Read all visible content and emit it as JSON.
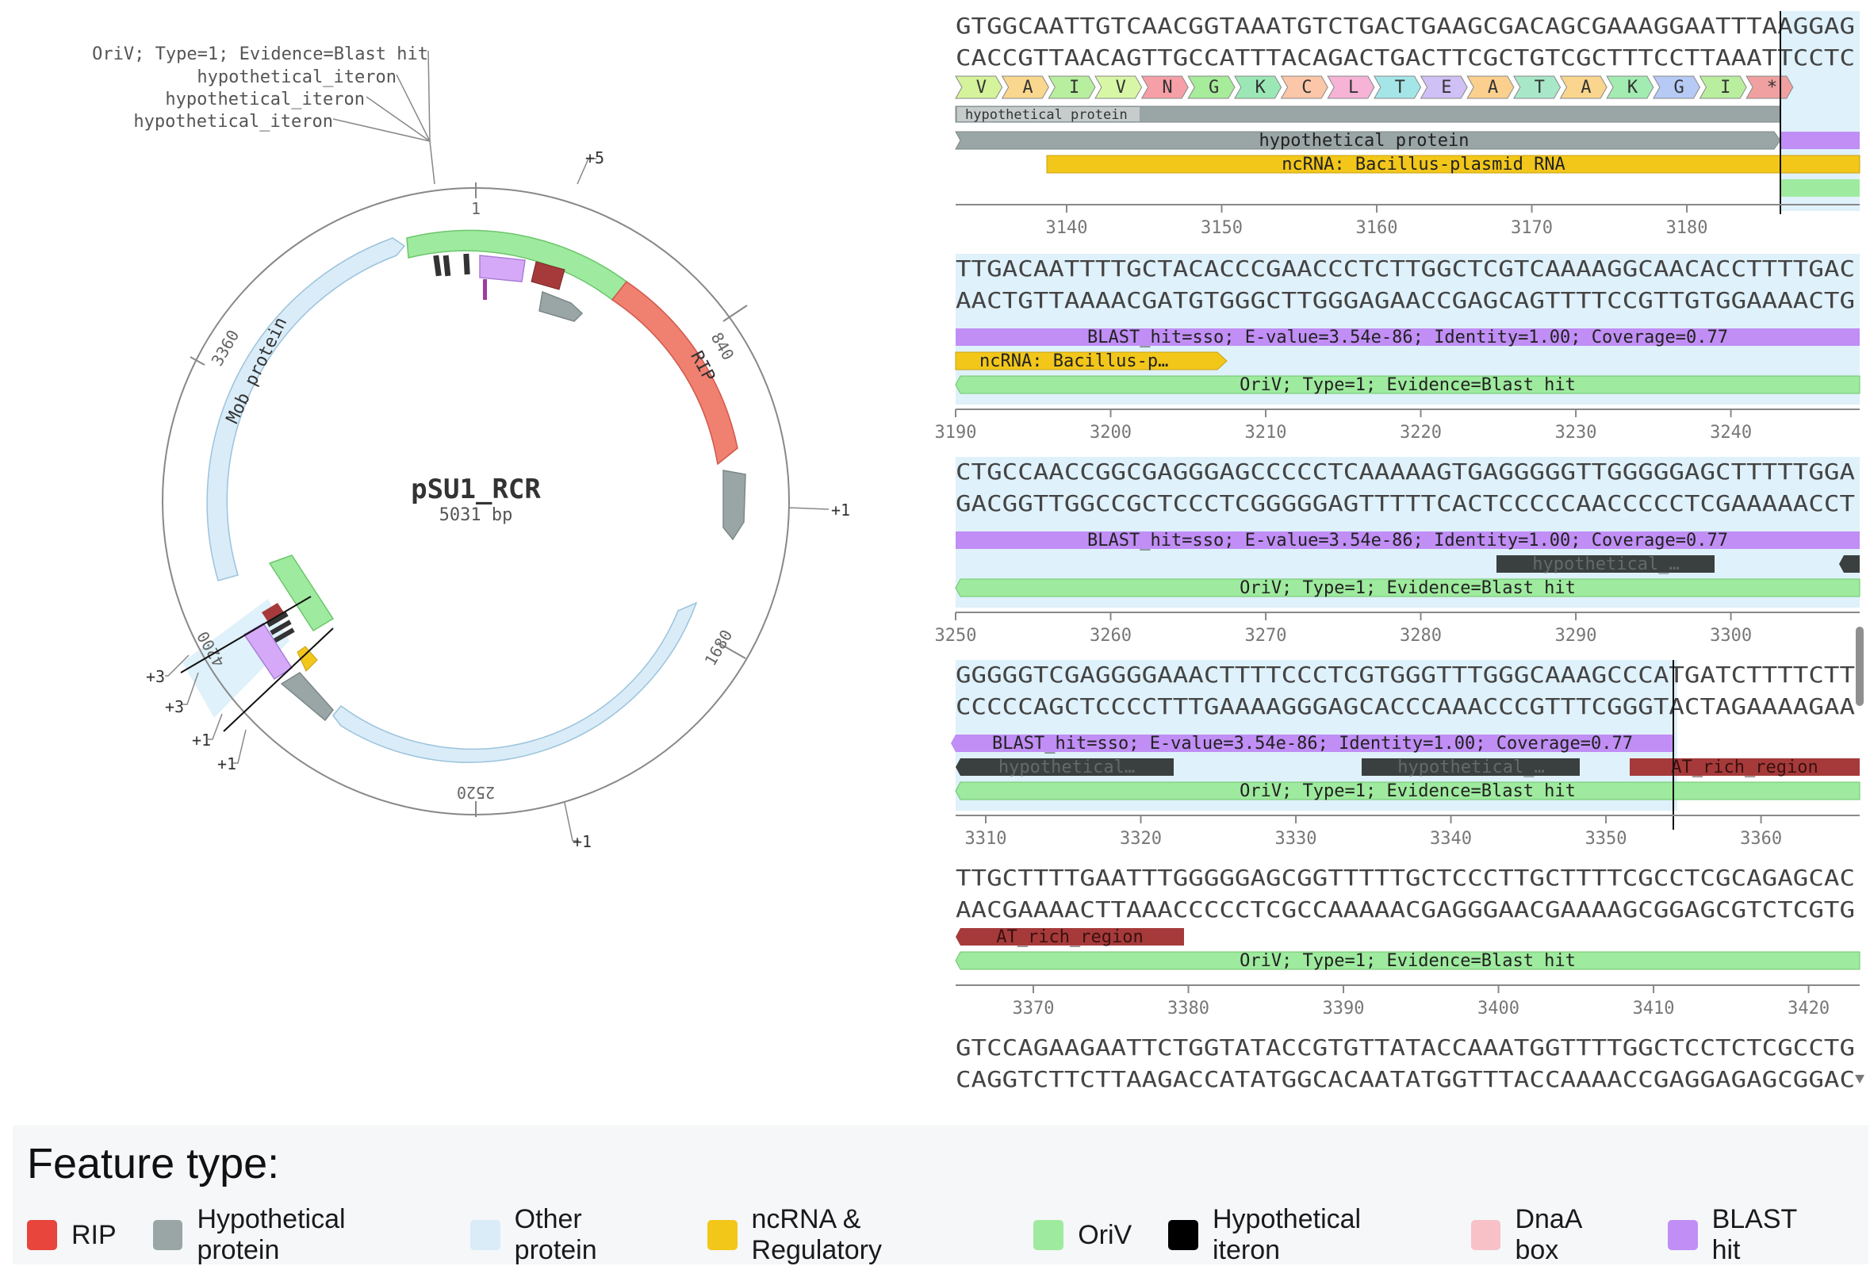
{
  "plasmid": {
    "name": "pSU1_RCR",
    "length_label": "5031 bp",
    "ticks": [
      "1",
      "840",
      "1680",
      "2520",
      "3360",
      "4200"
    ],
    "cutsite_labels": [
      "+5",
      "+1",
      "+1",
      "+3",
      "+3",
      "+1",
      "+1"
    ],
    "feature_labels": [
      "OriV; Type=1; Evidence=Blast hit",
      "hypothetical_iteron",
      "hypothetical_iteron",
      "hypothetical_iteron"
    ],
    "arc_labels": [
      "RIP",
      "Mob protein"
    ]
  },
  "colors": {
    "rip": "#e8453c",
    "rip_arc": "#f08070",
    "hypothetical": "#9aa5a5",
    "other": "#d9ecf8",
    "ncrna": "#f2c71a",
    "oriv": "#9eea9e",
    "iteron": "#000000",
    "dnaa": "#f8c1c8",
    "blast": "#c08ef5",
    "at_rich": "#a63a3a",
    "hyp_dark": "#3a3f40",
    "highlight": "#dff1fa"
  },
  "linear": {
    "rows": [
      {
        "top": "GTGGCAATTGTCAACGGTAAATGTCTGACTGAAGCGACAGCGAAAGGAATTTAAGGAG",
        "bottom": "CACCGTTAACAGTTGCCATTTACAGACTGACTTCGCTGTCGCTTTCCTTAAATTCCTC",
        "aa": [
          "V",
          "A",
          "I",
          "V",
          "N",
          "G",
          "K",
          "C",
          "L",
          "T",
          "E",
          "A",
          "T",
          "A",
          "K",
          "G",
          "I",
          "*"
        ],
        "small_label": "hypothetical protein",
        "features": [
          "hypothetical protein",
          "ncRNA: Bacillus-plasmid RNA"
        ],
        "ticks": [
          "3140",
          "3150",
          "3160",
          "3170",
          "3180"
        ]
      },
      {
        "top": "TTGACAATTTTGCTACACCCGAACCCTCTTGGCTCGTCAAAAGGCAACACCTTTTGAC",
        "bottom": "AACTGTTAAAACGATGTGGGCTTGGGAGAACCGAGCAGTTTTCCGTTGTGGAAAACTG",
        "features": [
          "BLAST_hit=sso; E-value=3.54e-86; Identity=1.00; Coverage=0.77",
          "ncRNA: Bacillus-p…",
          "OriV; Type=1; Evidence=Blast hit"
        ],
        "ticks": [
          "3190",
          "3200",
          "3210",
          "3220",
          "3230",
          "3240"
        ]
      },
      {
        "top": "CTGCCAACCGGCGAGGGAGCCCCCTCAAAAAGTGAGGGGGTTGGGGGAGCTTTTTGGA",
        "bottom": "GACGGTTGGCCGCTCCCTCGGGGGAGTTTTTCACTCCCCCAACCCCCTCGAAAAACCT",
        "features": [
          "BLAST_hit=sso; E-value=3.54e-86; Identity=1.00; Coverage=0.77",
          "hypothetical_…",
          "OriV; Type=1; Evidence=Blast hit"
        ],
        "ticks": [
          "3250",
          "3260",
          "3270",
          "3280",
          "3290",
          "3300"
        ]
      },
      {
        "top": "GGGGGTCGAGGGGAAACTTTTCCCTCGTGGGTTTGGGCAAAGCCCATGATCTTTTCTT",
        "bottom": "CCCCCAGCTCCCCTTTGAAAAGGGAGCACCCAAACCCGTTTCGGGTACTAGAAAAGAA",
        "features": [
          "BLAST_hit=sso; E-value=3.54e-86; Identity=1.00; Coverage=0.77",
          "hypothetical…",
          "hypothetical_…",
          "AT_rich_region",
          "OriV; Type=1; Evidence=Blast hit"
        ],
        "ticks": [
          "3310",
          "3320",
          "3330",
          "3340",
          "3350",
          "3360"
        ]
      },
      {
        "top": "TTGCTTTTGAATTTGGGGGAGCGGTTTTTGCTCCCTTGCTTTTCGCCTCGCAGAGCAC",
        "bottom": "AACGAAAACTTAAACCCCCTCGCCAAAAACGAGGGAACGAAAAGCGGAGCGTCTCGTG",
        "features": [
          "AT_rich_region",
          "OriV; Type=1; Evidence=Blast hit"
        ],
        "ticks": [
          "3370",
          "3380",
          "3390",
          "3400",
          "3410",
          "3420"
        ]
      },
      {
        "top": "GTCCAGAAGAATTCTGGTATACCGTGTTATACCAAATGGTTTTGGCTCCTCTCGCCTG",
        "bottom": "CAGGTCTTCTTAAGACCATATGGCACAATATGGTTTACCAAAACCGAGGAGAGCGGAC"
      }
    ]
  },
  "legend": {
    "title": "Feature type:",
    "items": [
      {
        "label": "RIP",
        "color": "#e8453c"
      },
      {
        "label": "Hypothetical protein",
        "color": "#9aa5a5"
      },
      {
        "label": "Other protein",
        "color": "#d9ecf8"
      },
      {
        "label": "ncRNA & Regulatory",
        "color": "#f2c71a"
      },
      {
        "label": "OriV",
        "color": "#9eea9e"
      },
      {
        "label": "Hypothetical iteron",
        "color": "#000000"
      },
      {
        "label": "DnaA box",
        "color": "#f8c1c8"
      },
      {
        "label": "BLAST hit",
        "color": "#c08ef5"
      }
    ]
  }
}
